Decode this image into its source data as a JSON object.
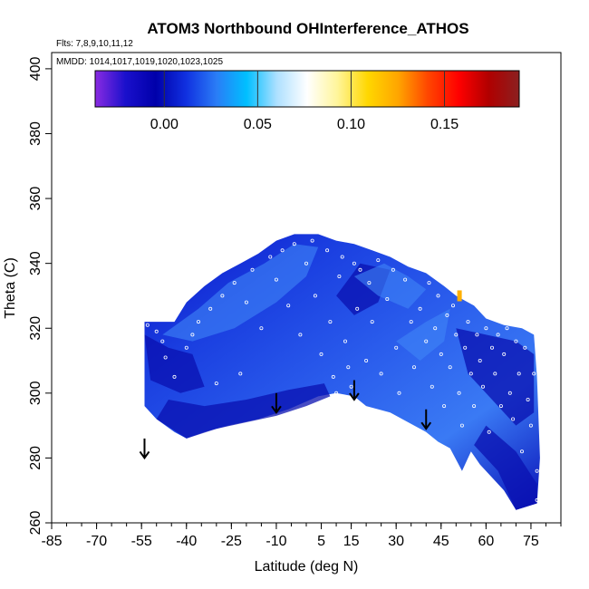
{
  "chart_data": {
    "type": "heatmap",
    "title": "ATOM3 Northbound OHInterference_ATHOS",
    "flights_label": "Flts: 7,8,9,10,11,12",
    "mmdd_label": "MMDD: 1014,1017,1019,1020,1023,1025",
    "xlabel": "Latitude (deg N)",
    "ylabel": "Theta (C)",
    "xlim": [
      -85,
      85
    ],
    "ylim": [
      260,
      405
    ],
    "x_ticks": [
      -85,
      -70,
      -55,
      -40,
      -25,
      -10,
      5,
      15,
      30,
      45,
      60,
      75
    ],
    "x_tick_labels": [
      "-85",
      "-70",
      "-55",
      "-40",
      "-25",
      "-10",
      "5",
      "15",
      "30",
      "45",
      "60",
      "75"
    ],
    "y_ticks": [
      260,
      280,
      300,
      320,
      340,
      360,
      380,
      400
    ],
    "y_tick_labels": [
      "260",
      "280",
      "300",
      "320",
      "340",
      "360",
      "380",
      "400"
    ],
    "colorbar": {
      "min": -0.037,
      "max": 0.19,
      "ticks": [
        0.0,
        0.05,
        0.1,
        0.15
      ],
      "tick_labels": [
        "0.00",
        "0.05",
        "0.10",
        "0.15"
      ],
      "colors": [
        "#8a2be2",
        "#1a10cc",
        "#0000aa",
        "#1030e0",
        "#2a7cf6",
        "#00bfff",
        "#aee0ff",
        "#ffffff",
        "#fff59a",
        "#ffd700",
        "#ffa500",
        "#ff4500",
        "#ff0000",
        "#b00000",
        "#8b2020"
      ]
    },
    "field": {
      "colors": [
        "#0a14c8",
        "#1a3ee0",
        "#2a5cec",
        "#3a7af4",
        "#0a12b8"
      ],
      "outline": [
        [
          -54,
          296
        ],
        [
          -54,
          322
        ],
        [
          -44,
          322
        ],
        [
          -40,
          328
        ],
        [
          -34,
          333
        ],
        [
          -28,
          337
        ],
        [
          -22,
          340
        ],
        [
          -16,
          343
        ],
        [
          -10,
          347
        ],
        [
          -4,
          349
        ],
        [
          4,
          349
        ],
        [
          10,
          347
        ],
        [
          16,
          346
        ],
        [
          22,
          344
        ],
        [
          28,
          342
        ],
        [
          34,
          339
        ],
        [
          40,
          337
        ],
        [
          46,
          333
        ],
        [
          50,
          330
        ],
        [
          56,
          327
        ],
        [
          60,
          323
        ],
        [
          66,
          321
        ],
        [
          72,
          320
        ],
        [
          76,
          318
        ],
        [
          77,
          305
        ],
        [
          78,
          280
        ],
        [
          77,
          266
        ],
        [
          70,
          264
        ],
        [
          66,
          270
        ],
        [
          58,
          278
        ],
        [
          55,
          282
        ],
        [
          52,
          276
        ],
        [
          48,
          283
        ],
        [
          44,
          285
        ],
        [
          40,
          288
        ],
        [
          34,
          291
        ],
        [
          28,
          294
        ],
        [
          20,
          296
        ],
        [
          16,
          299
        ],
        [
          10,
          300
        ],
        [
          4,
          299
        ],
        [
          -6,
          295
        ],
        [
          -16,
          292
        ],
        [
          -26,
          290
        ],
        [
          -34,
          288
        ],
        [
          -40,
          286
        ],
        [
          -44,
          288
        ],
        [
          -50,
          292
        ]
      ],
      "dark_regions": [
        [
          [
            -50,
            292
          ],
          [
            -40,
            286
          ],
          [
            -30,
            289
          ],
          [
            -20,
            291
          ],
          [
            -10,
            293
          ],
          [
            0,
            296
          ],
          [
            8,
            299
          ],
          [
            6,
            303
          ],
          [
            -6,
            301
          ],
          [
            -20,
            298
          ],
          [
            -34,
            296
          ],
          [
            -46,
            298
          ]
        ],
        [
          [
            -54,
            318
          ],
          [
            -46,
            314
          ],
          [
            -38,
            312
          ],
          [
            -34,
            302
          ],
          [
            -42,
            300
          ],
          [
            -52,
            304
          ]
        ],
        [
          [
            10,
            330
          ],
          [
            18,
            340
          ],
          [
            28,
            338
          ],
          [
            24,
            328
          ],
          [
            16,
            324
          ]
        ],
        [
          [
            50,
            320
          ],
          [
            60,
            318
          ],
          [
            70,
            316
          ],
          [
            76,
            312
          ],
          [
            76,
            294
          ],
          [
            70,
            290
          ],
          [
            62,
            298
          ],
          [
            54,
            306
          ]
        ],
        [
          [
            60,
            290
          ],
          [
            70,
            282
          ],
          [
            77,
            272
          ],
          [
            77,
            266
          ],
          [
            70,
            264
          ],
          [
            64,
            276
          ],
          [
            56,
            284
          ]
        ]
      ],
      "light_regions": [
        [
          [
            -48,
            318
          ],
          [
            -36,
            326
          ],
          [
            -26,
            334
          ],
          [
            -14,
            340
          ],
          [
            -4,
            346
          ],
          [
            4,
            345
          ],
          [
            0,
            336
          ],
          [
            -10,
            328
          ],
          [
            -24,
            320
          ],
          [
            -38,
            316
          ]
        ],
        [
          [
            16,
            336
          ],
          [
            26,
            340
          ],
          [
            34,
            336
          ],
          [
            40,
            332
          ],
          [
            34,
            326
          ],
          [
            24,
            330
          ]
        ],
        [
          [
            30,
            316
          ],
          [
            40,
            322
          ],
          [
            48,
            326
          ],
          [
            46,
            316
          ],
          [
            38,
            310
          ]
        ]
      ],
      "hotspot": {
        "x": 51,
        "y": 330,
        "color": "#ffb000"
      }
    },
    "obs_points": [
      [
        -53,
        321
      ],
      [
        -50,
        319
      ],
      [
        -48,
        316
      ],
      [
        -47,
        311
      ],
      [
        -44,
        305
      ],
      [
        -40,
        314
      ],
      [
        -38,
        318
      ],
      [
        -36,
        322
      ],
      [
        -32,
        326
      ],
      [
        -30,
        303
      ],
      [
        -28,
        330
      ],
      [
        -24,
        334
      ],
      [
        -22,
        306
      ],
      [
        -20,
        328
      ],
      [
        -18,
        338
      ],
      [
        -15,
        320
      ],
      [
        -12,
        342
      ],
      [
        -10,
        335
      ],
      [
        -8,
        344
      ],
      [
        -6,
        327
      ],
      [
        -4,
        346
      ],
      [
        -2,
        318
      ],
      [
        0,
        340
      ],
      [
        2,
        347
      ],
      [
        3,
        330
      ],
      [
        5,
        312
      ],
      [
        7,
        344
      ],
      [
        8,
        322
      ],
      [
        9,
        305
      ],
      [
        10,
        300
      ],
      [
        11,
        336
      ],
      [
        12,
        342
      ],
      [
        13,
        316
      ],
      [
        14,
        308
      ],
      [
        15,
        302
      ],
      [
        16,
        340
      ],
      [
        17,
        326
      ],
      [
        18,
        338
      ],
      [
        20,
        310
      ],
      [
        21,
        334
      ],
      [
        22,
        322
      ],
      [
        24,
        341
      ],
      [
        25,
        306
      ],
      [
        27,
        329
      ],
      [
        29,
        338
      ],
      [
        30,
        314
      ],
      [
        31,
        300
      ],
      [
        33,
        335
      ],
      [
        35,
        322
      ],
      [
        36,
        308
      ],
      [
        38,
        326
      ],
      [
        40,
        316
      ],
      [
        41,
        334
      ],
      [
        42,
        302
      ],
      [
        43,
        320
      ],
      [
        44,
        330
      ],
      [
        45,
        312
      ],
      [
        46,
        296
      ],
      [
        47,
        324
      ],
      [
        48,
        308
      ],
      [
        49,
        327
      ],
      [
        50,
        318
      ],
      [
        51,
        300
      ],
      [
        52,
        290
      ],
      [
        53,
        314
      ],
      [
        54,
        322
      ],
      [
        55,
        306
      ],
      [
        56,
        296
      ],
      [
        57,
        318
      ],
      [
        58,
        310
      ],
      [
        59,
        302
      ],
      [
        60,
        320
      ],
      [
        61,
        288
      ],
      [
        62,
        314
      ],
      [
        63,
        306
      ],
      [
        64,
        318
      ],
      [
        65,
        296
      ],
      [
        66,
        312
      ],
      [
        67,
        320
      ],
      [
        68,
        300
      ],
      [
        69,
        292
      ],
      [
        70,
        316
      ],
      [
        71,
        306
      ],
      [
        72,
        282
      ],
      [
        73,
        314
      ],
      [
        74,
        298
      ],
      [
        75,
        290
      ],
      [
        76,
        306
      ],
      [
        77,
        276
      ],
      [
        77,
        267
      ]
    ],
    "arrows": [
      {
        "x": -54,
        "y_top": 286,
        "y_bottom": 280
      },
      {
        "x": -10,
        "y_top": 300,
        "y_bottom": 294
      },
      {
        "x": 16,
        "y_top": 304,
        "y_bottom": 298
      },
      {
        "x": 40,
        "y_top": 295,
        "y_bottom": 289
      }
    ]
  }
}
